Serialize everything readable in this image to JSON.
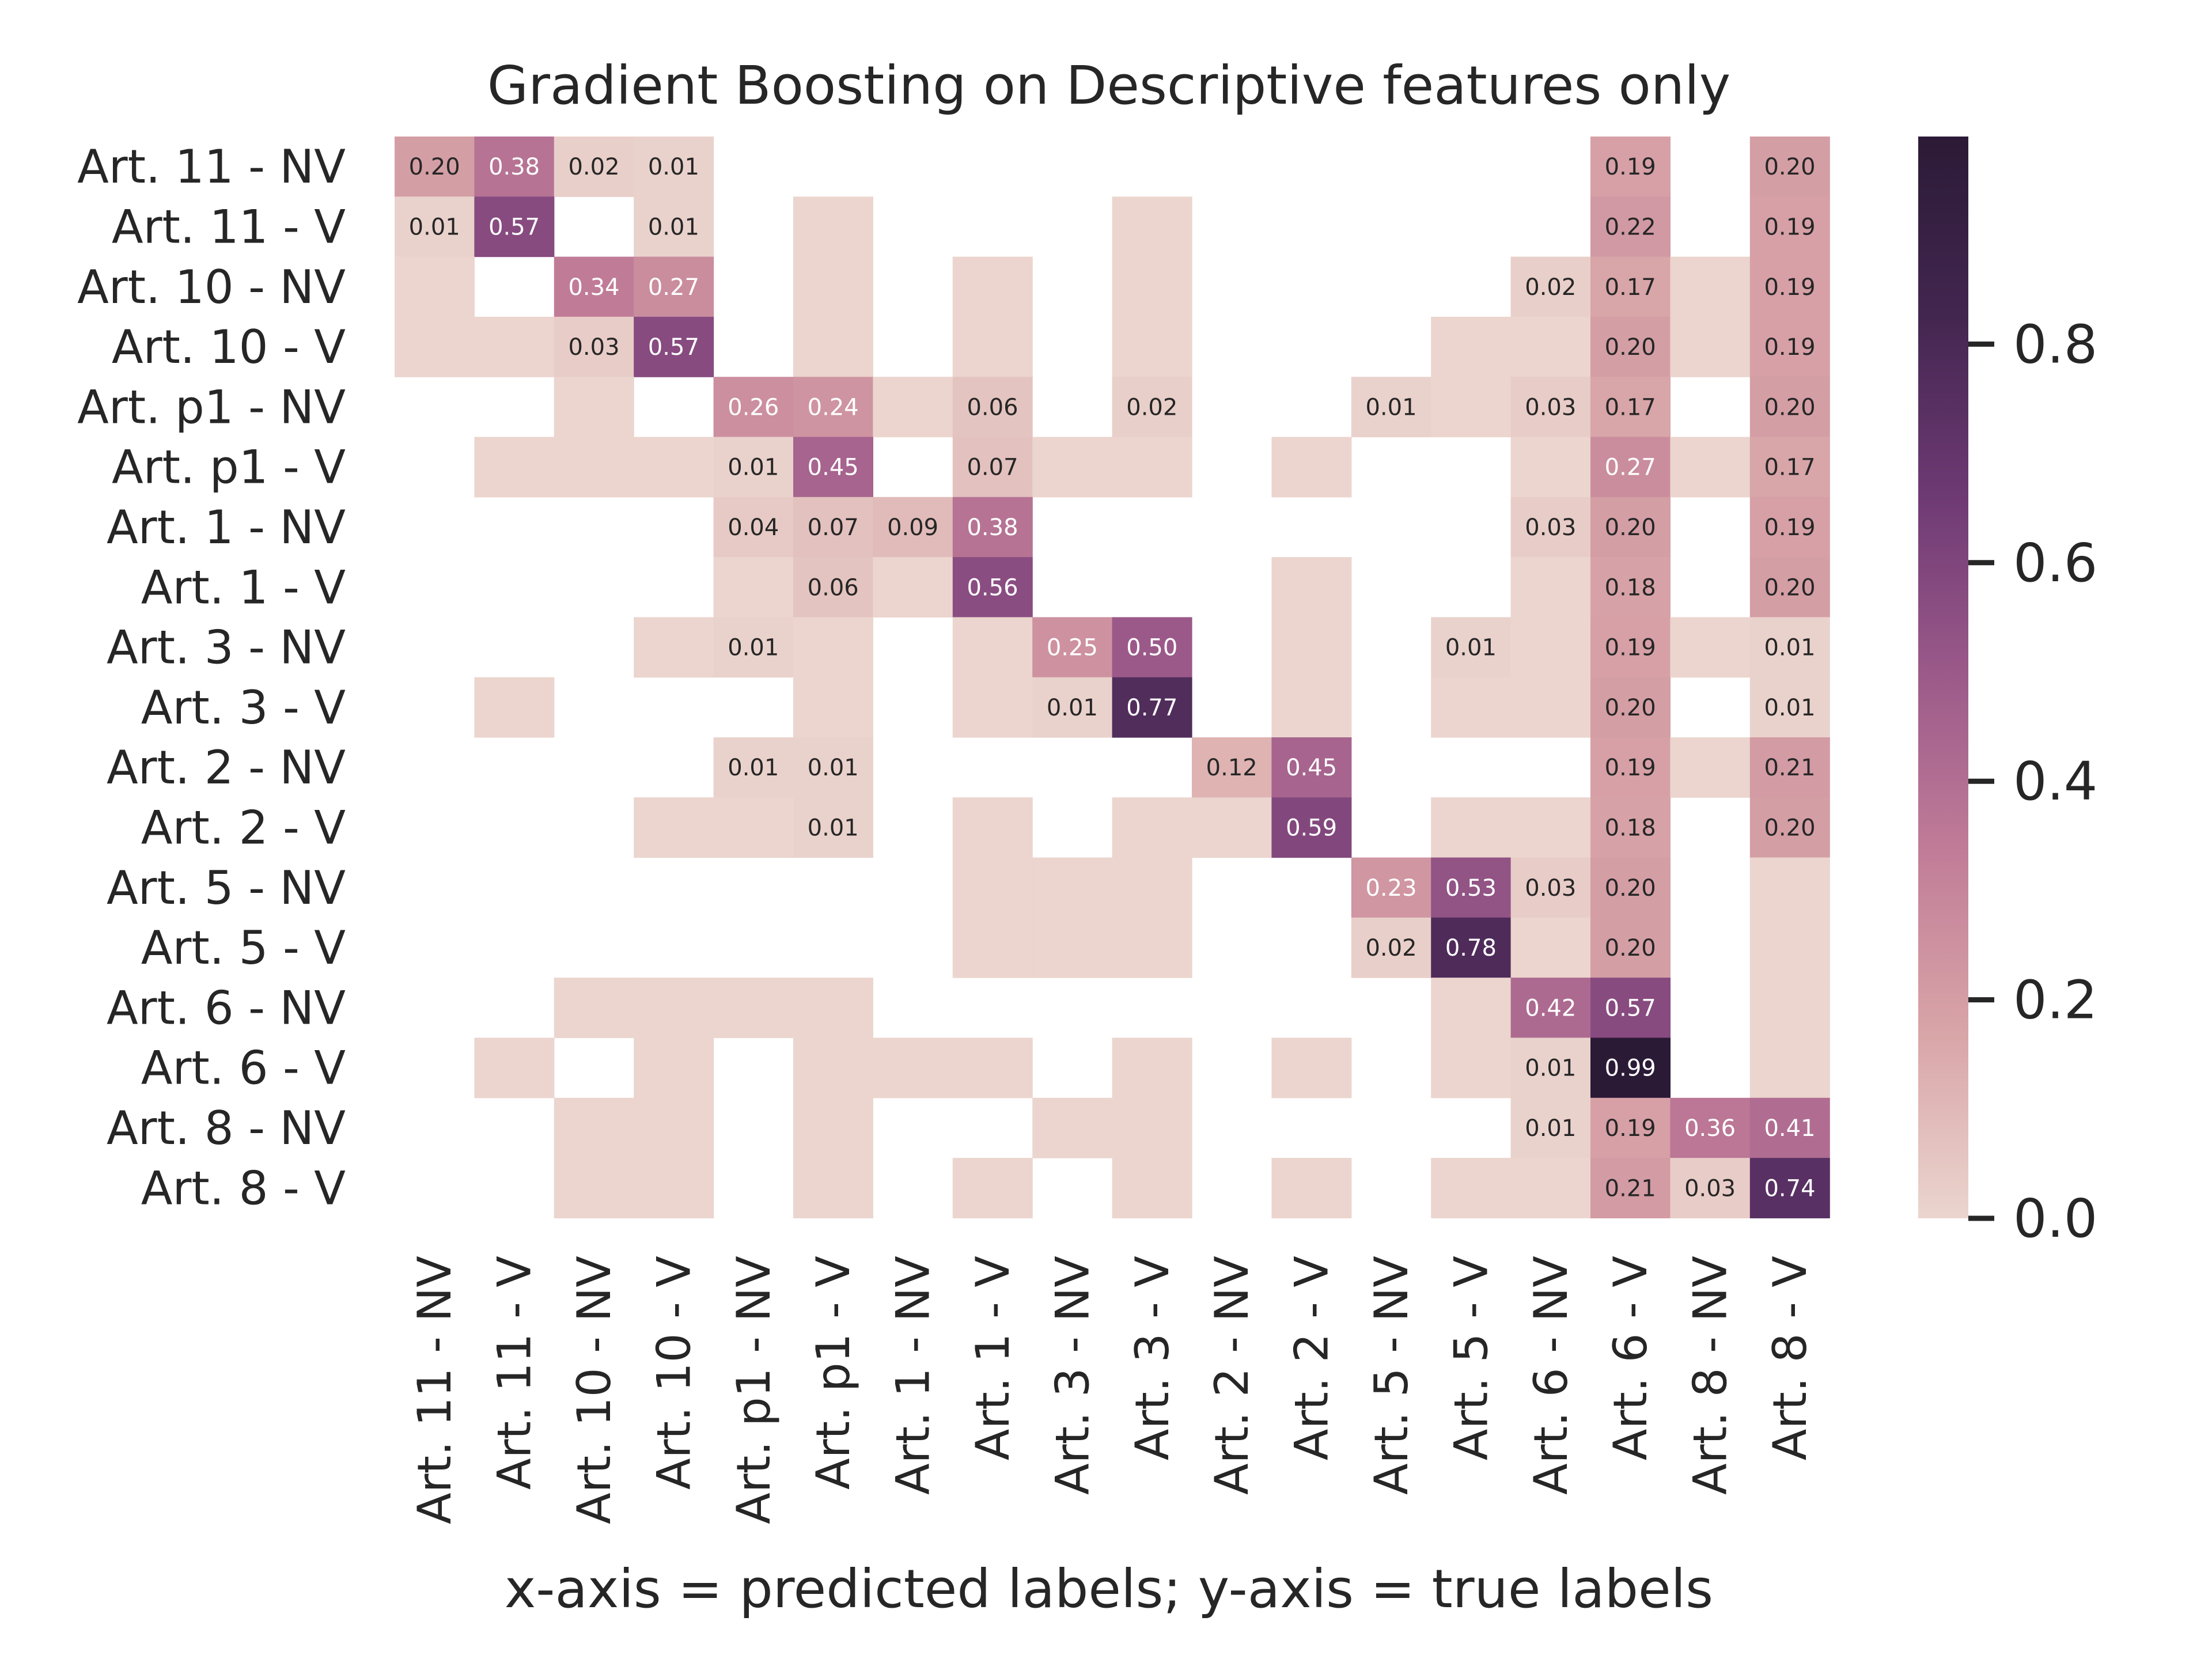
{
  "chart_data": {
    "type": "heatmap",
    "title": "Gradient Boosting on Descriptive features only",
    "xlabel": "x-axis = predicted labels; y-axis = true labels",
    "ylabel": "",
    "x_categories": [
      "Art. 11 - NV",
      "Art. 11 - V",
      "Art. 10 - NV",
      "Art. 10 - V",
      "Art. p1 - NV",
      "Art. p1 - V",
      "Art. 1 - NV",
      "Art. 1 - V",
      "Art. 3 - NV",
      "Art. 3 - V",
      "Art. 2 - NV",
      "Art. 2 - V",
      "Art. 5 - NV",
      "Art. 5 - V",
      "Art. 6 - NV",
      "Art. 6 - V",
      "Art. 8 - NV",
      "Art. 8 - V"
    ],
    "y_categories": [
      "Art. 11 - NV",
      "Art. 11 - V",
      "Art. 10 - NV",
      "Art. 10 - V",
      "Art. p1 - NV",
      "Art. p1 - V",
      "Art. 1 - NV",
      "Art. 1 - V",
      "Art. 3 - NV",
      "Art. 3 - V",
      "Art. 2 - NV",
      "Art. 2 - V",
      "Art. 5 - NV",
      "Art. 5 - V",
      "Art. 6 - NV",
      "Art. 6 - V",
      "Art. 8 - NV",
      "Art. 8 - V"
    ],
    "values": [
      [
        0.2,
        0.38,
        0.02,
        0.01,
        null,
        null,
        null,
        null,
        null,
        null,
        null,
        null,
        null,
        null,
        null,
        0.19,
        null,
        0.2
      ],
      [
        0.01,
        0.57,
        null,
        0.01,
        null,
        0.0,
        null,
        null,
        null,
        0.0,
        null,
        null,
        null,
        null,
        null,
        0.22,
        null,
        0.19
      ],
      [
        0.0,
        null,
        0.34,
        0.27,
        null,
        0.0,
        null,
        0.0,
        null,
        0.0,
        null,
        null,
        null,
        null,
        0.02,
        0.17,
        0.0,
        0.19
      ],
      [
        0.0,
        0.0,
        0.03,
        0.57,
        null,
        0.0,
        null,
        0.0,
        null,
        0.0,
        null,
        null,
        null,
        0.0,
        0.0,
        0.2,
        0.0,
        0.19
      ],
      [
        null,
        null,
        0.0,
        null,
        0.26,
        0.24,
        0.0,
        0.06,
        null,
        0.02,
        null,
        null,
        0.01,
        0.0,
        0.03,
        0.17,
        null,
        0.2
      ],
      [
        null,
        0.0,
        0.0,
        0.0,
        0.01,
        0.45,
        null,
        0.07,
        0.0,
        0.0,
        null,
        0.0,
        null,
        null,
        0.0,
        0.27,
        0.0,
        0.17
      ],
      [
        null,
        null,
        null,
        null,
        0.04,
        0.07,
        0.09,
        0.38,
        null,
        null,
        null,
        null,
        null,
        null,
        0.03,
        0.2,
        null,
        0.19
      ],
      [
        null,
        null,
        null,
        null,
        0.0,
        0.06,
        0.0,
        0.56,
        null,
        null,
        null,
        0.0,
        null,
        null,
        0.0,
        0.18,
        null,
        0.2
      ],
      [
        null,
        null,
        null,
        0.0,
        0.01,
        0.0,
        null,
        0.0,
        0.25,
        0.5,
        null,
        0.0,
        null,
        0.01,
        0.0,
        0.19,
        0.0,
        0.01
      ],
      [
        null,
        0.0,
        null,
        null,
        null,
        0.0,
        null,
        0.0,
        0.01,
        0.77,
        null,
        0.0,
        null,
        0.0,
        0.0,
        0.2,
        null,
        0.01
      ],
      [
        null,
        null,
        null,
        null,
        0.01,
        0.01,
        null,
        null,
        null,
        null,
        0.12,
        0.45,
        null,
        null,
        null,
        0.19,
        0.0,
        0.21
      ],
      [
        null,
        null,
        null,
        0.0,
        0.0,
        0.01,
        null,
        0.0,
        null,
        0.0,
        0.0,
        0.59,
        null,
        0.0,
        0.0,
        0.18,
        null,
        0.2
      ],
      [
        null,
        null,
        null,
        null,
        null,
        null,
        null,
        0.0,
        0.0,
        0.0,
        null,
        null,
        0.23,
        0.53,
        0.03,
        0.2,
        null,
        0.0
      ],
      [
        null,
        null,
        null,
        null,
        null,
        null,
        null,
        0.0,
        0.0,
        0.0,
        null,
        null,
        0.02,
        0.78,
        0.0,
        0.2,
        null,
        0.0
      ],
      [
        null,
        null,
        0.0,
        0.0,
        0.0,
        0.0,
        null,
        null,
        null,
        null,
        null,
        null,
        null,
        0.0,
        0.42,
        0.57,
        null,
        0.0
      ],
      [
        null,
        0.0,
        null,
        0.0,
        null,
        0.0,
        0.0,
        0.0,
        null,
        0.0,
        null,
        0.0,
        null,
        0.0,
        0.01,
        0.99,
        null,
        0.0
      ],
      [
        null,
        null,
        0.0,
        0.0,
        null,
        0.0,
        null,
        null,
        0.0,
        0.0,
        null,
        null,
        null,
        null,
        0.01,
        0.19,
        0.36,
        0.41
      ],
      [
        null,
        null,
        0.0,
        0.0,
        null,
        0.0,
        null,
        0.0,
        null,
        0.0,
        null,
        0.0,
        null,
        0.0,
        0.0,
        0.21,
        0.03,
        0.74
      ]
    ],
    "annotate_threshold": 0.01,
    "vmin": 0.0,
    "vmax": 0.99,
    "colorbar_ticks": [
      0.0,
      0.2,
      0.4,
      0.6,
      0.8
    ],
    "colorbar_tick_labels": [
      "0.0",
      "0.2",
      "0.4",
      "0.6",
      "0.8"
    ],
    "colormap": [
      "#ebd5ce",
      "#d9a6a8",
      "#c27e98",
      "#9c5a8a",
      "#6e3a74",
      "#432650",
      "#2b1a36"
    ],
    "grid": false,
    "legend": "colorbar-right"
  }
}
